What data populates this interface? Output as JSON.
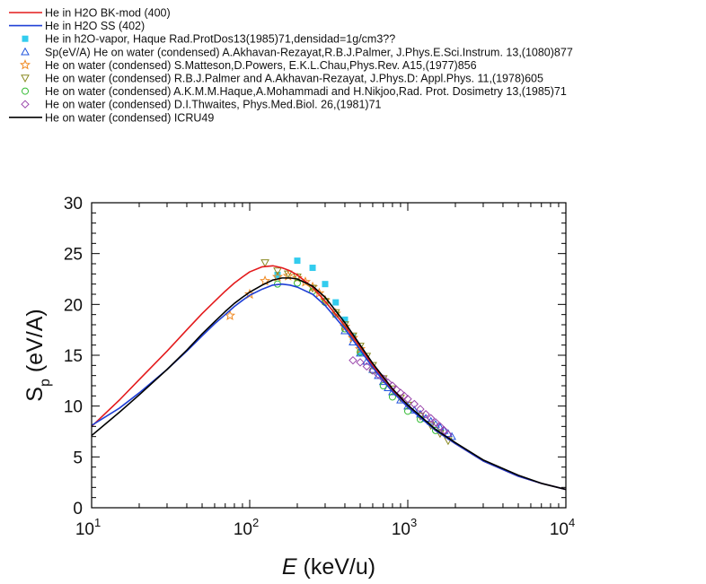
{
  "chart_data": {
    "type": "line",
    "xscale": "log",
    "yscale": "linear",
    "xlim": [
      10,
      10000
    ],
    "ylim": [
      0,
      30
    ],
    "xlabel_italic": "E",
    "xlabel_unit": "(keV/u)",
    "ylabel_main": "S",
    "ylabel_sub": "p",
    "ylabel_unit": "(eV/A)",
    "x_ticks": [
      {
        "base": "10",
        "exp": "1",
        "value": 10
      },
      {
        "base": "10",
        "exp": "2",
        "value": 100
      },
      {
        "base": "10",
        "exp": "3",
        "value": 1000
      },
      {
        "base": "10",
        "exp": "4",
        "value": 10000
      }
    ],
    "y_ticks": [
      "0",
      "5",
      "10",
      "15",
      "20",
      "25",
      "30"
    ],
    "legend_position": "top-left, above plot",
    "series": [
      {
        "name": "He in H2O BK-mod (400)",
        "kind": "line",
        "color": "#e31a1c",
        "x": [
          10,
          15,
          20,
          30,
          40,
          50,
          60,
          70,
          80,
          90,
          100,
          120,
          140,
          160,
          180,
          200,
          250,
          300,
          400,
          500,
          600,
          800,
          1000,
          1500,
          2000,
          3000,
          5000,
          7000,
          10000
        ],
        "y": [
          8.0,
          10.6,
          12.6,
          15.4,
          17.5,
          19.1,
          20.3,
          21.3,
          22.1,
          22.7,
          23.2,
          23.7,
          23.8,
          23.6,
          23.3,
          22.9,
          21.7,
          20.3,
          17.9,
          15.8,
          14.0,
          11.6,
          10.0,
          7.6,
          6.3,
          4.6,
          3.1,
          2.4,
          1.8
        ]
      },
      {
        "name": "He in H2O SS (402)",
        "kind": "line",
        "color": "#1f3fd6",
        "x": [
          10,
          15,
          20,
          30,
          40,
          50,
          60,
          70,
          80,
          90,
          100,
          120,
          140,
          160,
          180,
          200,
          250,
          300,
          400,
          500,
          600,
          800,
          1000,
          1500,
          2000,
          3000,
          5000,
          7000,
          10000
        ],
        "y": [
          8.1,
          9.8,
          11.3,
          13.6,
          15.4,
          16.9,
          18.1,
          19.0,
          19.8,
          20.4,
          20.9,
          21.5,
          21.9,
          22.0,
          21.9,
          21.7,
          21.0,
          19.9,
          17.6,
          15.5,
          13.8,
          11.4,
          9.9,
          7.6,
          6.3,
          4.6,
          3.1,
          2.4,
          1.8
        ]
      },
      {
        "name": "He on water (condensed) ICRU49",
        "kind": "line",
        "color": "#000000",
        "x": [
          10,
          15,
          20,
          30,
          40,
          50,
          60,
          70,
          80,
          90,
          100,
          120,
          140,
          160,
          180,
          200,
          250,
          300,
          400,
          500,
          600,
          800,
          1000,
          1500,
          2000,
          3000,
          5000,
          7000,
          10000
        ],
        "y": [
          7.1,
          9.4,
          11.1,
          13.6,
          15.5,
          17.1,
          18.3,
          19.3,
          20.1,
          20.7,
          21.2,
          21.9,
          22.4,
          22.6,
          22.6,
          22.5,
          21.8,
          20.7,
          18.2,
          16.0,
          14.2,
          11.7,
          10.1,
          7.7,
          6.4,
          4.7,
          3.2,
          2.4,
          1.8
        ]
      },
      {
        "name": "He in h2O-vapor, Haque Rad.ProtDos13(1985)71,densidad=1g/cm3??",
        "kind": "marker",
        "marker": "square",
        "color": "#33ccee",
        "x": [
          150,
          200,
          250,
          300,
          350,
          400,
          450,
          500
        ],
        "y": [
          22.9,
          24.3,
          23.6,
          22.0,
          20.2,
          18.5,
          16.8,
          15.3
        ]
      },
      {
        "name": "Sp(eV/A) He on water (condensed) A.Akhavan-Rezayat,R.B.J.Palmer, J.Phys.E.Sci.Instrum. 13,(1080)877",
        "kind": "marker",
        "marker": "triangle-up",
        "color": "#2255dd",
        "x": [
          400,
          450,
          500,
          550,
          600,
          650,
          700,
          750,
          800,
          900,
          1000,
          1100,
          1200,
          1300,
          1400,
          1500,
          1600,
          1700,
          1800,
          1900
        ],
        "y": [
          17.4,
          16.3,
          15.2,
          14.4,
          13.6,
          13.0,
          12.4,
          11.8,
          11.4,
          10.6,
          10.0,
          9.6,
          9.2,
          8.8,
          8.5,
          8.2,
          7.9,
          7.6,
          7.3,
          7.0
        ]
      },
      {
        "name": "He on water (condensed) S.Matteson,D.Powers, E.K.L.Chau,Phys.Rev. A15,(1977)856",
        "kind": "marker",
        "marker": "star",
        "color": "#f08a24",
        "x": [
          75,
          100,
          125,
          150,
          175,
          200,
          225,
          250,
          275,
          300,
          350,
          400,
          450,
          500
        ],
        "y": [
          18.9,
          21.0,
          22.3,
          22.7,
          22.8,
          22.6,
          22.2,
          21.7,
          21.1,
          20.4,
          19.1,
          17.8,
          16.7,
          15.6
        ]
      },
      {
        "name": "He on water (condensed) R.B.J.Palmer and A.Akhavan-Rezayat, J.Phys.D: Appl.Phys. 11,(1978)605",
        "kind": "marker",
        "marker": "triangle-down",
        "color": "#8a8a22",
        "x": [
          125,
          150,
          175,
          200,
          250,
          300,
          350,
          400,
          450,
          500,
          550,
          600,
          700,
          800,
          900,
          1000,
          1200,
          1400,
          1600,
          1800
        ],
        "y": [
          24.1,
          23.3,
          23.0,
          22.7,
          21.6,
          20.3,
          19.2,
          18.0,
          16.9,
          15.9,
          14.9,
          14.0,
          12.7,
          11.7,
          10.8,
          10.1,
          9.0,
          8.1,
          7.3,
          6.6
        ]
      },
      {
        "name": "He on water (condensed) A.K.M.M.Haque,A.Mohammadi and H.Nikjoo,Rad. Prot. Dosimetry 13,(1985)71",
        "kind": "marker",
        "marker": "circle",
        "color": "#33bb33",
        "x": [
          150,
          200,
          250,
          300,
          350,
          400,
          500,
          600,
          700,
          800,
          1000,
          1200,
          1500
        ],
        "y": [
          22.0,
          22.1,
          21.3,
          20.2,
          19.0,
          17.6,
          15.3,
          13.5,
          12.0,
          10.9,
          9.5,
          8.7,
          7.6
        ]
      },
      {
        "name": "He on water (condensed) D.I.Thwaites, Phys.Med.Biol. 26,(1981)71",
        "kind": "marker",
        "marker": "diamond",
        "color": "#9944aa",
        "x": [
          450,
          500,
          550,
          600,
          650,
          700,
          750,
          800,
          850,
          900,
          950,
          1000,
          1100,
          1200,
          1300,
          1400,
          1500,
          1600,
          1700,
          1800
        ],
        "y": [
          14.5,
          14.3,
          13.9,
          13.5,
          13.1,
          12.7,
          12.3,
          12.0,
          11.6,
          11.3,
          11.0,
          10.7,
          10.2,
          9.7,
          9.2,
          8.8,
          8.4,
          8.0,
          7.6,
          7.2
        ]
      }
    ]
  }
}
